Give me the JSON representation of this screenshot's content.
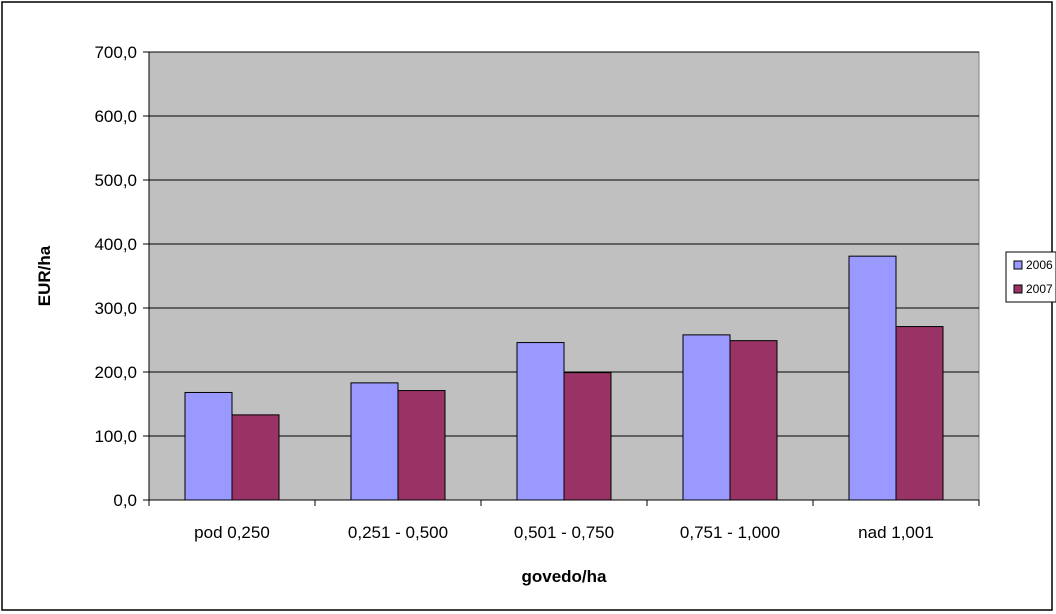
{
  "chart_data": {
    "type": "bar",
    "title": "",
    "xlabel": "govedo/ha",
    "ylabel": "EUR/ha",
    "categories": [
      "pod 0,250",
      "0,251 - 0,500",
      "0,501 - 0,750",
      "0,751 - 1,000",
      "nad 1,001"
    ],
    "series": [
      {
        "name": "2006",
        "values": [
          168,
          183,
          246,
          258,
          381
        ]
      },
      {
        "name": "2007",
        "values": [
          133,
          171,
          199,
          249,
          271
        ]
      }
    ],
    "ylim": [
      0,
      700
    ],
    "yticks": [
      0,
      100,
      200,
      300,
      400,
      500,
      600,
      700
    ],
    "ytick_labels": [
      "0,0",
      "100,0",
      "200,0",
      "300,0",
      "400,0",
      "500,0",
      "600,0",
      "700,0"
    ],
    "grid": true,
    "legend_position": "right",
    "colors": {
      "plot_background": "#c0c0c0",
      "series": [
        "#9999ff",
        "#993366"
      ]
    }
  }
}
